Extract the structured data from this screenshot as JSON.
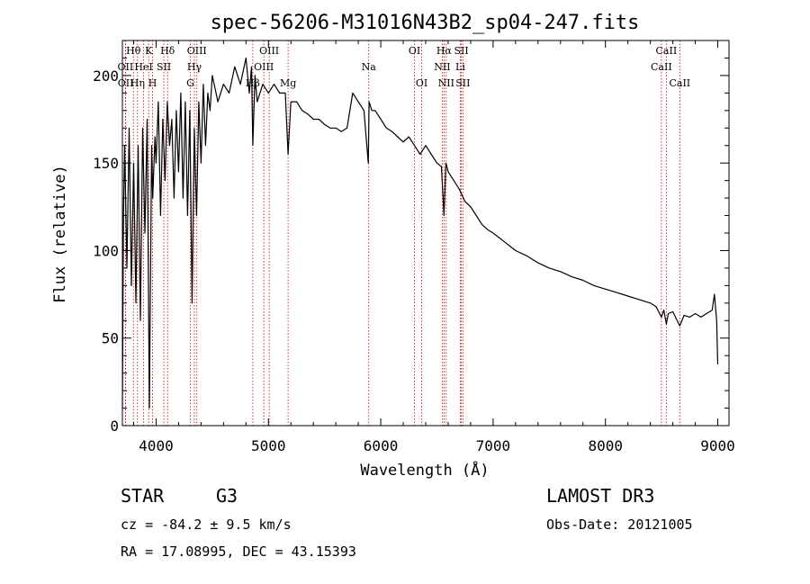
{
  "chart_data": {
    "type": "line",
    "title": "spec-56206-M31016N43B2_sp04-247.fits",
    "xlabel": "Wavelength (Å)",
    "ylabel": "Flux (relative)",
    "xlim": [
      3700,
      9100
    ],
    "ylim": [
      0,
      220
    ],
    "xticks": [
      4000,
      5000,
      6000,
      7000,
      8000,
      9000
    ],
    "yticks": [
      0,
      50,
      100,
      150,
      200
    ],
    "grid": false,
    "series": [
      {
        "name": "flux",
        "x": [
          3700,
          3710,
          3720,
          3740,
          3760,
          3780,
          3800,
          3820,
          3840,
          3860,
          3880,
          3900,
          3920,
          3940,
          3960,
          3970,
          3990,
          4000,
          4020,
          4040,
          4060,
          4080,
          4100,
          4120,
          4140,
          4160,
          4180,
          4200,
          4220,
          4240,
          4260,
          4280,
          4300,
          4320,
          4340,
          4360,
          4380,
          4400,
          4420,
          4440,
          4460,
          4480,
          4500,
          4550,
          4600,
          4650,
          4700,
          4750,
          4800,
          4830,
          4850,
          4861,
          4880,
          4900,
          4950,
          5000,
          5050,
          5100,
          5150,
          5175,
          5200,
          5250,
          5300,
          5350,
          5400,
          5450,
          5500,
          5550,
          5600,
          5650,
          5700,
          5750,
          5800,
          5850,
          5889,
          5896,
          5920,
          5950,
          6000,
          6050,
          6100,
          6150,
          6200,
          6250,
          6300,
          6350,
          6400,
          6450,
          6500,
          6540,
          6563,
          6580,
          6600,
          6650,
          6700,
          6750,
          6800,
          6850,
          6900,
          6950,
          7000,
          7100,
          7200,
          7300,
          7400,
          7500,
          7600,
          7700,
          7800,
          7900,
          8000,
          8100,
          8200,
          8300,
          8400,
          8450,
          8498,
          8520,
          8542,
          8560,
          8600,
          8662,
          8700,
          8750,
          8800,
          8850,
          8900,
          8950,
          8970,
          8990,
          9000
        ],
        "y": [
          10,
          120,
          160,
          90,
          170,
          80,
          150,
          70,
          160,
          60,
          170,
          110,
          175,
          10,
          160,
          130,
          165,
          150,
          185,
          120,
          175,
          140,
          185,
          160,
          175,
          130,
          180,
          145,
          190,
          130,
          185,
          120,
          180,
          70,
          170,
          120,
          185,
          150,
          195,
          160,
          190,
          180,
          200,
          185,
          195,
          190,
          205,
          195,
          210,
          190,
          205,
          160,
          200,
          185,
          195,
          190,
          195,
          190,
          190,
          155,
          185,
          185,
          180,
          178,
          175,
          175,
          172,
          170,
          170,
          168,
          170,
          190,
          185,
          180,
          150,
          185,
          180,
          180,
          175,
          170,
          168,
          165,
          162,
          165,
          160,
          155,
          160,
          155,
          150,
          148,
          120,
          150,
          145,
          140,
          135,
          128,
          125,
          120,
          115,
          112,
          110,
          105,
          100,
          97,
          93,
          90,
          88,
          85,
          83,
          80,
          78,
          76,
          74,
          72,
          70,
          68,
          62,
          66,
          58,
          64,
          65,
          57,
          63,
          62,
          64,
          62,
          64,
          66,
          75,
          60,
          35
        ]
      }
    ],
    "spectral_lines": [
      {
        "label": "Hθ",
        "x": 3798,
        "row": 0
      },
      {
        "label": "OII",
        "x": 3727,
        "row": 1
      },
      {
        "label": "OII",
        "x": 3729,
        "row": 2
      },
      {
        "label": "K",
        "x": 3934,
        "row": 0
      },
      {
        "label": "HeI",
        "x": 3889,
        "row": 1
      },
      {
        "label": "Hη",
        "x": 3835,
        "row": 2
      },
      {
        "label": "SII",
        "x": 4069,
        "row": 1
      },
      {
        "label": "H",
        "x": 3969,
        "row": 2
      },
      {
        "label": "Hδ",
        "x": 4102,
        "row": 0
      },
      {
        "label": "OIII",
        "x": 4363,
        "row": 0
      },
      {
        "label": "Hγ",
        "x": 4341,
        "row": 1
      },
      {
        "label": "G",
        "x": 4305,
        "row": 2
      },
      {
        "label": "OIII",
        "x": 5007,
        "row": 0
      },
      {
        "label": "OIII",
        "x": 4959,
        "row": 1
      },
      {
        "label": "Hβ",
        "x": 4861,
        "row": 2
      },
      {
        "label": "Mg",
        "x": 5175,
        "row": 2
      },
      {
        "label": "Na",
        "x": 5893,
        "row": 1
      },
      {
        "label": "OI",
        "x": 6300,
        "row": 0
      },
      {
        "label": "OI",
        "x": 6364,
        "row": 2
      },
      {
        "label": "Hα",
        "x": 6563,
        "row": 0
      },
      {
        "label": "SII",
        "x": 6717,
        "row": 0
      },
      {
        "label": "NII",
        "x": 6548,
        "row": 1
      },
      {
        "label": "Li",
        "x": 6708,
        "row": 1
      },
      {
        "label": "NII",
        "x": 6583,
        "row": 2
      },
      {
        "label": "SII",
        "x": 6731,
        "row": 2
      },
      {
        "label": "CaII",
        "x": 8542,
        "row": 0
      },
      {
        "label": "CaII",
        "x": 8498,
        "row": 1
      },
      {
        "label": "CaII",
        "x": 8662,
        "row": 2
      }
    ],
    "line_color": "#cc0000",
    "data_color": "#000000"
  },
  "info": {
    "object_class": "STAR",
    "subclass": "G3",
    "redshift": "cz = -84.2 ± 9.5 km/s",
    "coords": "RA =  17.08995, DEC =  43.15393",
    "survey": "LAMOST DR3",
    "obs_date": "Obs-Date: 20121005"
  }
}
